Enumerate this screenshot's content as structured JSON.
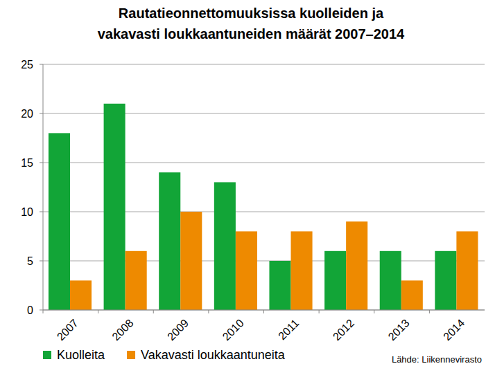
{
  "chart_data": {
    "type": "bar",
    "title": "Rautatieonnettomuuksissa kuolleiden ja\nvakavasti loukkaantuneiden määrät 2007–2014",
    "categories": [
      "2007",
      "2008",
      "2009",
      "2010",
      "2011",
      "2012",
      "2013",
      "2014"
    ],
    "series": [
      {
        "name": "Kuolleita",
        "color": "#12a537",
        "values": [
          18,
          21,
          14,
          13,
          5,
          6,
          6,
          6
        ]
      },
      {
        "name": "Vakavasti loukkaantuneita",
        "color": "#ee8a00",
        "values": [
          3,
          6,
          10,
          8,
          8,
          9,
          3,
          8
        ]
      }
    ],
    "ylim": [
      0,
      25
    ],
    "yticks": [
      0,
      5,
      10,
      15,
      20,
      25
    ],
    "grid": true,
    "legend": "bottom",
    "annotations": [
      "Lähde: Liikennevirasto"
    ]
  }
}
